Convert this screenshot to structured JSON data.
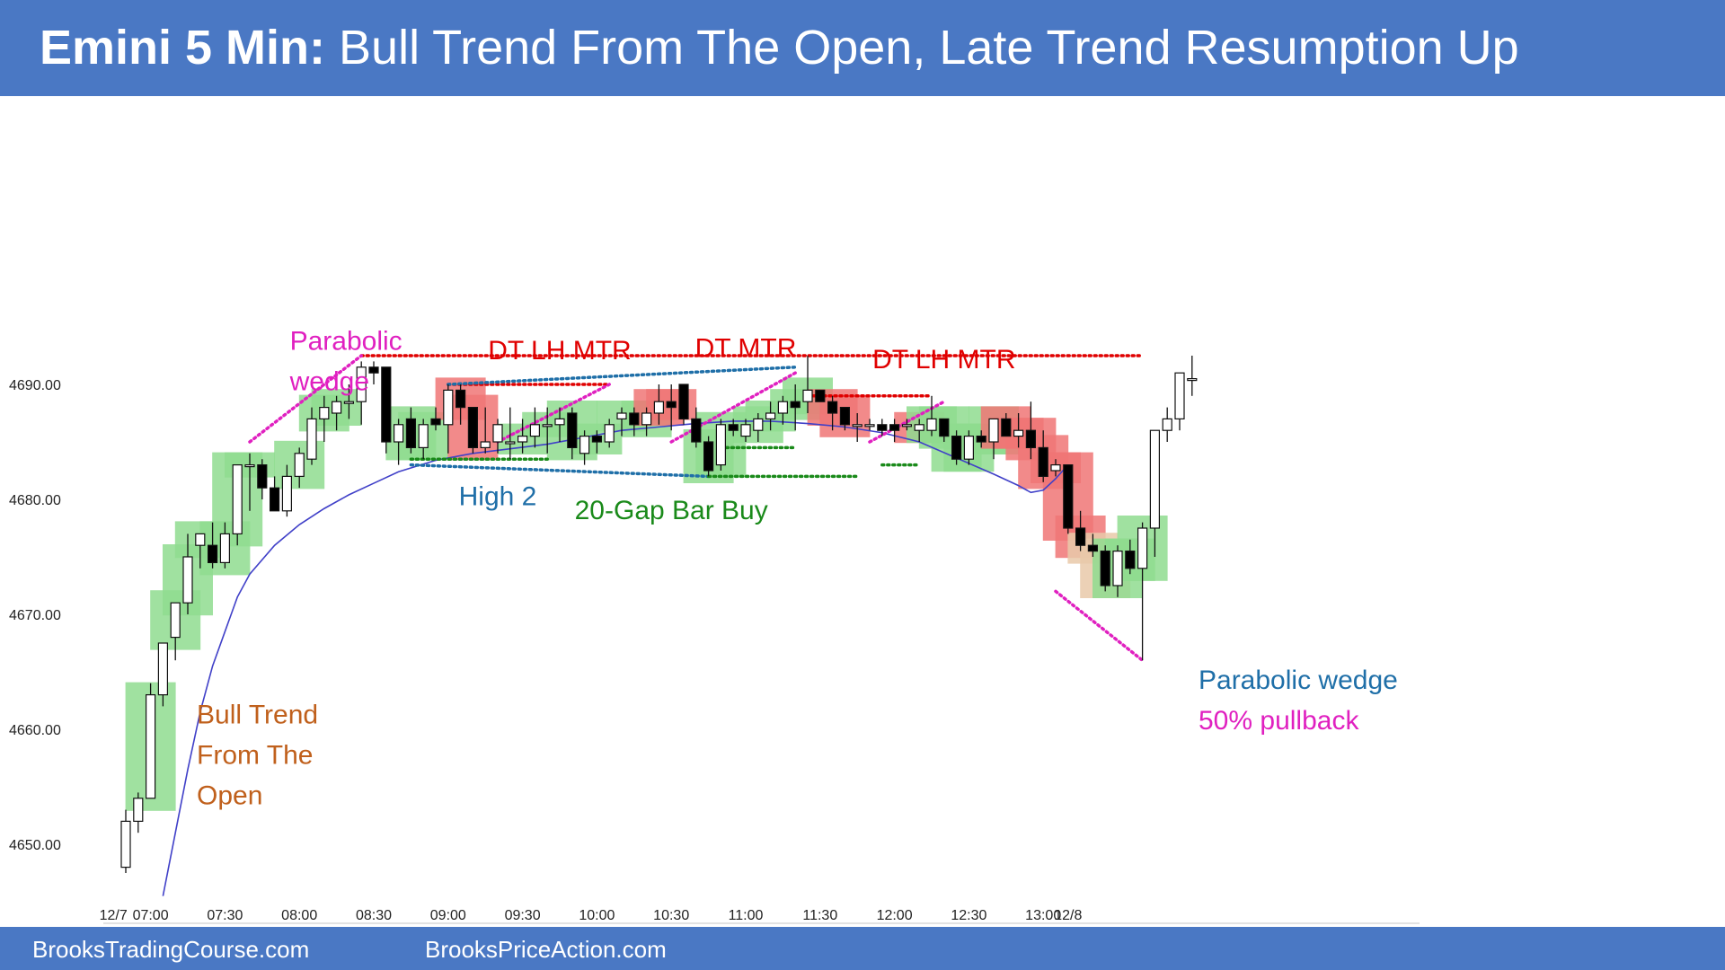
{
  "header": {
    "title_bold": "Emini 5 Min:",
    "title_rest": "Bull Trend From The Open, Late Trend Resumption Up"
  },
  "footer": {
    "link1": "BrooksTradingCourse.com",
    "link2": "BrooksPriceAction.com"
  },
  "colors": {
    "banner": "#4a78c4",
    "bull_signal": "#8fdc8f",
    "bear_signal": "#f07575",
    "neutral_signal": "#e9c9a9",
    "ema": "#4040c8",
    "red": "#e00000",
    "blue": "#1f6fa8",
    "green": "#1a8a1a",
    "magenta": "#e020c0",
    "orange": "#c0601c"
  },
  "chart_data": {
    "type": "candlestick",
    "title": "Emini 5 Min: Bull Trend From The Open, Late Trend Resumption Up",
    "ylim": [
      4645,
      4695
    ],
    "yticks": [
      4650,
      4660,
      4670,
      4680,
      4690
    ],
    "ytick_labels": [
      "4650.00",
      "4660.00",
      "4670.00",
      "4680.00",
      "4690.00"
    ],
    "xtick_labels": [
      {
        "bar": -1,
        "label": "12/7"
      },
      {
        "bar": 2,
        "label": "07:00"
      },
      {
        "bar": 8,
        "label": "07:30"
      },
      {
        "bar": 14,
        "label": "08:00"
      },
      {
        "bar": 20,
        "label": "08:30"
      },
      {
        "bar": 26,
        "label": "09:00"
      },
      {
        "bar": 32,
        "label": "09:30"
      },
      {
        "bar": 38,
        "label": "10:00"
      },
      {
        "bar": 44,
        "label": "10:30"
      },
      {
        "bar": 50,
        "label": "11:00"
      },
      {
        "bar": 56,
        "label": "11:30"
      },
      {
        "bar": 62,
        "label": "12:00"
      },
      {
        "bar": 68,
        "label": "12:30"
      },
      {
        "bar": 74,
        "label": "13:00"
      },
      {
        "bar": 76,
        "label": "12/8"
      }
    ],
    "bars": [
      [
        4648,
        4653,
        4647.5,
        4652
      ],
      [
        4652,
        4654.5,
        4651,
        4654
      ],
      [
        4654,
        4664,
        4654,
        4663
      ],
      [
        4663,
        4667.5,
        4662,
        4667.5
      ],
      [
        4668,
        4671,
        4666,
        4671
      ],
      [
        4671,
        4677,
        4670,
        4675
      ],
      [
        4676,
        4677,
        4674,
        4677
      ],
      [
        4676,
        4678,
        4674,
        4674.5
      ],
      [
        4674.5,
        4678,
        4674,
        4677
      ],
      [
        4677,
        4683,
        4676,
        4683
      ],
      [
        4683,
        4684,
        4679,
        4683
      ],
      [
        4683,
        4683.5,
        4680,
        4681
      ],
      [
        4681,
        4682,
        4679,
        4679
      ],
      [
        4679,
        4683,
        4678.5,
        4682
      ],
      [
        4682,
        4684.5,
        4681,
        4684
      ],
      [
        4683.5,
        4688,
        4683,
        4687
      ],
      [
        4687,
        4689,
        4685,
        4688
      ],
      [
        4687.5,
        4689,
        4686,
        4688.5
      ],
      [
        4688.5,
        4690,
        4687,
        4688.5
      ],
      [
        4688.5,
        4692,
        4686.5,
        4691.5
      ],
      [
        4691.5,
        4692,
        4690,
        4691
      ],
      [
        4691.5,
        4691.5,
        4684,
        4685
      ],
      [
        4685,
        4687,
        4683,
        4686.5
      ],
      [
        4687,
        4688,
        4684,
        4684.5
      ],
      [
        4684.5,
        4687,
        4683.5,
        4686.5
      ],
      [
        4687,
        4688,
        4686,
        4686.5
      ],
      [
        4686.5,
        4690,
        4684,
        4689.5
      ],
      [
        4689.5,
        4690,
        4686.5,
        4688
      ],
      [
        4688,
        4688,
        4684,
        4684.5
      ],
      [
        4684.5,
        4688,
        4684,
        4685
      ],
      [
        4685,
        4687,
        4684,
        4686.5
      ],
      [
        4685,
        4688,
        4683.5,
        4685
      ],
      [
        4685,
        4687,
        4684,
        4685.5
      ],
      [
        4685.5,
        4688,
        4684.5,
        4686.5
      ],
      [
        4686.5,
        4688,
        4684,
        4686.5
      ],
      [
        4686.5,
        4688,
        4685,
        4687
      ],
      [
        4687.5,
        4688,
        4683.5,
        4684.5
      ],
      [
        4684,
        4686,
        4683,
        4685.5
      ],
      [
        4685.5,
        4686,
        4684,
        4685
      ],
      [
        4685,
        4687,
        4684.5,
        4686.5
      ],
      [
        4687,
        4688,
        4685.5,
        4687.5
      ],
      [
        4687.5,
        4688,
        4685.5,
        4686.5
      ],
      [
        4686.5,
        4688,
        4685.5,
        4687.5
      ],
      [
        4687.5,
        4690,
        4686.5,
        4688.5
      ],
      [
        4688.5,
        4690,
        4686,
        4688
      ],
      [
        4690,
        4690,
        4686.5,
        4687
      ],
      [
        4687,
        4688,
        4684.5,
        4685
      ],
      [
        4685,
        4685.5,
        4682,
        4682.5
      ],
      [
        4683,
        4687,
        4682.5,
        4686.5
      ],
      [
        4686.5,
        4687,
        4685.5,
        4686
      ],
      [
        4685.5,
        4687,
        4685,
        4686.5
      ],
      [
        4686,
        4687.5,
        4685,
        4687
      ],
      [
        4687,
        4688.5,
        4686,
        4687.5
      ],
      [
        4687.5,
        4689,
        4686.5,
        4688.5
      ],
      [
        4688.5,
        4690,
        4686,
        4688
      ],
      [
        4688.5,
        4692.5,
        4687.5,
        4689.5
      ],
      [
        4689.5,
        4689.5,
        4688.5,
        4688.5
      ],
      [
        4688.5,
        4689,
        4686,
        4687.5
      ],
      [
        4688,
        4688,
        4686,
        4686.5
      ],
      [
        4686.5,
        4687.5,
        4685,
        4686.5
      ],
      [
        4686.5,
        4687,
        4686,
        4686.5
      ],
      [
        4686.5,
        4687,
        4685.5,
        4686
      ],
      [
        4686.5,
        4687,
        4685,
        4686
      ],
      [
        4686.5,
        4687,
        4686,
        4686.5
      ],
      [
        4686,
        4687,
        4685,
        4686.5
      ],
      [
        4686,
        4689,
        4685.5,
        4687
      ],
      [
        4687,
        4687,
        4685,
        4685.5
      ],
      [
        4685.5,
        4686,
        4683,
        4683.5
      ],
      [
        4683.5,
        4686,
        4683,
        4685.5
      ],
      [
        4685.5,
        4686,
        4684.5,
        4685
      ],
      [
        4685,
        4687,
        4683.5,
        4687
      ],
      [
        4687,
        4687.5,
        4685.5,
        4685.5
      ],
      [
        4685.5,
        4687.5,
        4684.5,
        4686
      ],
      [
        4686,
        4688.5,
        4683.5,
        4684.5
      ],
      [
        4684.5,
        4686,
        4681.5,
        4682
      ],
      [
        4682.5,
        4683.5,
        4682,
        4683
      ],
      [
        4683,
        4683,
        4677,
        4677.5
      ],
      [
        4677.5,
        4679,
        4675.5,
        4676
      ],
      [
        4676,
        4677,
        4675,
        4675.5
      ],
      [
        4675.5,
        4676,
        4672,
        4672.5
      ],
      [
        4672.5,
        4676,
        4671.5,
        4675.5
      ],
      [
        4675.5,
        4676.5,
        4673.5,
        4674
      ],
      [
        4674,
        4678,
        4666,
        4677.5
      ],
      [
        4677.5,
        4686,
        4675,
        4686
      ],
      [
        4686,
        4688,
        4685,
        4687
      ],
      [
        4687,
        4691,
        4686,
        4691
      ],
      [
        4690.5,
        4692.5,
        4689,
        4690.5
      ]
    ],
    "ema20": [
      [
        3,
        4645.5
      ],
      [
        4,
        4651
      ],
      [
        5,
        4656.5
      ],
      [
        6,
        4661.5
      ],
      [
        7,
        4665.5
      ],
      [
        8,
        4668.5
      ],
      [
        9,
        4671.5
      ],
      [
        10,
        4673.5
      ],
      [
        12,
        4676
      ],
      [
        14,
        4677.8
      ],
      [
        16,
        4679.2
      ],
      [
        18,
        4680.4
      ],
      [
        20,
        4681.4
      ],
      [
        22,
        4682.4
      ],
      [
        25,
        4683.4
      ],
      [
        28,
        4684
      ],
      [
        31,
        4684.4
      ],
      [
        34,
        4684.8
      ],
      [
        37,
        4685.4
      ],
      [
        40,
        4686
      ],
      [
        43,
        4686.3
      ],
      [
        46,
        4686.6
      ],
      [
        49,
        4686.8
      ],
      [
        52,
        4686.8
      ],
      [
        55,
        4686.6
      ],
      [
        58,
        4686.3
      ],
      [
        61,
        4685.8
      ],
      [
        64,
        4685
      ],
      [
        67,
        4683.6
      ],
      [
        70,
        4682.2
      ],
      [
        72,
        4681.2
      ],
      [
        73,
        4680.6
      ],
      [
        74,
        4680.8
      ],
      [
        75,
        4681.8
      ],
      [
        76,
        4683
      ]
    ],
    "signal_bars": [
      [
        2,
        "bull"
      ],
      [
        4,
        "bull"
      ],
      [
        5,
        "bull"
      ],
      [
        6,
        "bull"
      ],
      [
        8,
        "bull"
      ],
      [
        9,
        "bull"
      ],
      [
        10,
        "bull"
      ],
      [
        14,
        "bull"
      ],
      [
        16,
        "bull"
      ],
      [
        17,
        "bull"
      ],
      [
        23,
        "bull"
      ],
      [
        24,
        "bull"
      ],
      [
        27,
        "bear"
      ],
      [
        28,
        "bear"
      ],
      [
        32,
        "bull"
      ],
      [
        34,
        "bull"
      ],
      [
        36,
        "bull"
      ],
      [
        38,
        "bull"
      ],
      [
        40,
        "bull"
      ],
      [
        42,
        "bull"
      ],
      [
        43,
        "bear"
      ],
      [
        44,
        "bear"
      ],
      [
        47,
        "bull"
      ],
      [
        48,
        "bull"
      ],
      [
        51,
        "bull"
      ],
      [
        52,
        "bull"
      ],
      [
        54,
        "bull"
      ],
      [
        55,
        "bull"
      ],
      [
        57,
        "bear"
      ],
      [
        58,
        "bear"
      ],
      [
        64,
        "bear"
      ],
      [
        65,
        "bull"
      ],
      [
        66,
        "bull"
      ],
      [
        67,
        "bull"
      ],
      [
        68,
        "bull"
      ],
      [
        69,
        "bull"
      ],
      [
        70,
        "bull"
      ],
      [
        71,
        "bear"
      ],
      [
        72,
        "bear"
      ],
      [
        73,
        "bear"
      ],
      [
        74,
        "bear"
      ],
      [
        75,
        "bear"
      ],
      [
        76,
        "bear"
      ],
      [
        77,
        "bear"
      ],
      [
        78,
        "neutral"
      ],
      [
        79,
        "neutral"
      ],
      [
        80,
        "bull"
      ],
      [
        81,
        "bull"
      ],
      [
        82,
        "bull"
      ]
    ],
    "annotations": [
      {
        "text": [
          "Parabolic",
          "wedge"
        ],
        "color": "magenta",
        "x": 17,
        "y": 4693
      },
      {
        "text": [
          "DT LH MTR"
        ],
        "color": "red",
        "x": 35,
        "y": 4692.2
      },
      {
        "text": [
          "DT MTR"
        ],
        "color": "red",
        "x": 50,
        "y": 4692.4
      },
      {
        "text": [
          "DT LH MTR"
        ],
        "color": "red",
        "x": 66,
        "y": 4691.4
      },
      {
        "text": [
          "High 2"
        ],
        "color": "blue",
        "x": 30,
        "y": 4679.5
      },
      {
        "text": [
          "20-Gap Bar Buy"
        ],
        "color": "green",
        "x": 44,
        "y": 4678.3
      },
      {
        "text": [
          "Bull Trend",
          "From The",
          "Open"
        ],
        "color": "orange",
        "x": 0,
        "y": 4660.5
      },
      {
        "text": [
          "Parabolic wedge"
        ],
        "color": "blue",
        "x": 75.5,
        "y": 4663.5
      },
      {
        "text": [
          "50% pullback"
        ],
        "color": "magenta",
        "x": 75.5,
        "y": 4660
      }
    ],
    "lines": [
      {
        "x1": 19,
        "x2": 82,
        "y": 4692.5,
        "color": "red",
        "style": "dotted"
      },
      {
        "x1": 26,
        "x2": 39,
        "y": 4690,
        "color": "red",
        "style": "dotted"
      },
      {
        "x1": 55,
        "x2": 65,
        "y": 4689,
        "color": "red",
        "style": "dotted"
      },
      {
        "x1": 26,
        "y1": 4690,
        "x2": 54,
        "y2": 4691.5,
        "color": "blue",
        "style": "dotted"
      },
      {
        "x1": 23,
        "y1": 4683,
        "x2": 47,
        "y2": 4682,
        "color": "blue",
        "style": "dotted"
      },
      {
        "x1": 23,
        "x2": 34,
        "y": 4683.5,
        "color": "green",
        "style": "dotted"
      },
      {
        "x1": 47,
        "x2": 59,
        "y": 4682,
        "color": "green",
        "style": "dotted"
      },
      {
        "x1": 48,
        "x2": 54,
        "y": 4684.5,
        "color": "green",
        "style": "dotted"
      },
      {
        "x1": 61,
        "x2": 64,
        "y": 4683,
        "color": "green",
        "style": "dotted"
      },
      {
        "x1": 10,
        "y1": 4685,
        "x2": 19,
        "y2": 4692.5,
        "color": "magenta",
        "style": "dotted"
      },
      {
        "x1": 30,
        "y1": 4685,
        "x2": 39,
        "y2": 4690,
        "color": "magenta",
        "style": "dotted"
      },
      {
        "x1": 44,
        "y1": 4685,
        "x2": 54,
        "y2": 4691,
        "color": "magenta",
        "style": "dotted"
      },
      {
        "x1": 60,
        "y1": 4685,
        "x2": 66,
        "y2": 4688.5,
        "color": "magenta",
        "style": "dotted"
      },
      {
        "x1": 75,
        "y1": 4672,
        "x2": 82,
        "y2": 4666,
        "color": "magenta",
        "style": "dotted"
      }
    ]
  }
}
